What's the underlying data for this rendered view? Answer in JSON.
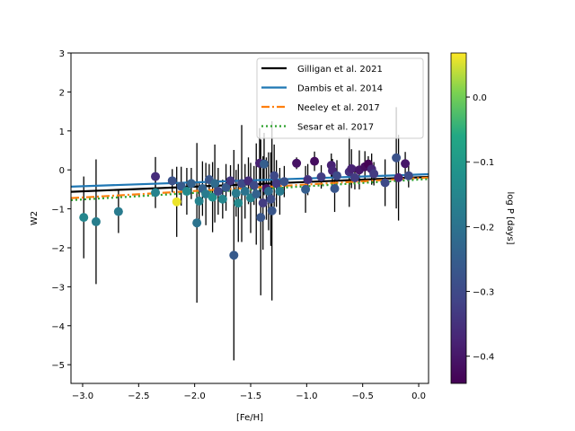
{
  "chart_data": {
    "type": "scatter",
    "xlabel": "[Fe/H]",
    "ylabel": "W2",
    "xlim": [
      -3.104,
      0.088
    ],
    "ylim": [
      -5.48,
      3.0
    ],
    "xticks": [
      -3.0,
      -2.5,
      -2.0,
      -1.5,
      -1.0,
      -0.5,
      0.0
    ],
    "xtick_labels": [
      "−3.0",
      "−2.5",
      "−2.0",
      "−1.5",
      "−1.0",
      "−0.5",
      "0.0"
    ],
    "yticks": [
      3,
      2,
      1,
      0,
      -1,
      -2,
      -3,
      -4,
      -5
    ],
    "ytick_labels": [
      "3",
      "2",
      "1",
      "0",
      "−1",
      "−2",
      "−3",
      "−4",
      "−5"
    ],
    "colorbar": {
      "label": "log P [days]",
      "range": [
        -0.442,
        0.068
      ],
      "ticks": [
        0.0,
        -0.1,
        -0.2,
        -0.3,
        -0.4
      ],
      "tick_labels": [
        "0.0",
        "−0.1",
        "−0.2",
        "−0.3",
        "−0.4"
      ],
      "colormap": "viridis"
    },
    "legend_position": "top-right",
    "lines": [
      {
        "name": "Gilligan et al. 2021",
        "slope": 0.12,
        "intercept": -0.19,
        "color": "#000000",
        "style": "solid"
      },
      {
        "name": "Dambis et al. 2014",
        "slope": 0.1,
        "intercept": -0.12,
        "color": "#1f77b4",
        "style": "solid"
      },
      {
        "name": "Neeley et al. 2017",
        "slope": 0.166,
        "intercept": -0.21,
        "color": "#ff7f0e",
        "style": "dashdot"
      },
      {
        "name": "Sesar et al. 2017",
        "slope": 0.17,
        "intercept": -0.25,
        "color": "#2ca02c",
        "style": "dotted"
      }
    ],
    "points": [
      [
        -2.99,
        -1.22,
        1.05,
        -0.15
      ],
      [
        -2.88,
        -1.33,
        1.6,
        -0.17
      ],
      [
        -2.68,
        -1.07,
        0.55,
        -0.18
      ],
      [
        -2.35,
        -0.17,
        0.5,
        -0.36
      ],
      [
        -2.35,
        -0.58,
        0.4,
        -0.16
      ],
      [
        -2.2,
        -0.28,
        0.3,
        -0.28
      ],
      [
        -2.16,
        -0.82,
        0.9,
        0.06
      ],
      [
        -2.12,
        -0.42,
        0.5,
        -0.26
      ],
      [
        -2.07,
        -0.55,
        0.6,
        -0.14
      ],
      [
        -2.03,
        -0.35,
        0.4,
        -0.24
      ],
      [
        -1.98,
        -1.36,
        2.05,
        -0.2
      ],
      [
        -1.96,
        -0.8,
        0.5,
        -0.16
      ],
      [
        -1.93,
        -0.48,
        0.7,
        -0.24
      ],
      [
        -1.9,
        -0.62,
        0.8,
        -0.18
      ],
      [
        -1.87,
        -0.25,
        0.4,
        -0.27
      ],
      [
        -1.84,
        -0.7,
        0.9,
        -0.13
      ],
      [
        -1.82,
        -0.35,
        1.0,
        -0.22
      ],
      [
        -1.79,
        -0.55,
        0.6,
        -0.3
      ],
      [
        -1.75,
        -0.75,
        0.5,
        -0.15
      ],
      [
        -1.72,
        -0.45,
        0.6,
        -0.26
      ],
      [
        -1.68,
        -0.28,
        0.4,
        -0.34
      ],
      [
        -1.65,
        -2.19,
        2.7,
        -0.26
      ],
      [
        -1.63,
        -0.6,
        0.6,
        -0.18
      ],
      [
        -1.61,
        -0.85,
        1.0,
        -0.14
      ],
      [
        -1.58,
        -0.35,
        1.5,
        -0.3
      ],
      [
        -1.55,
        -0.55,
        0.7,
        -0.2
      ],
      [
        -1.52,
        -0.28,
        0.6,
        -0.36
      ],
      [
        -1.5,
        -0.72,
        0.9,
        -0.16
      ],
      [
        -1.47,
        -0.4,
        0.5,
        -0.3
      ],
      [
        -1.45,
        -0.62,
        1.3,
        -0.24
      ],
      [
        -1.42,
        0.17,
        0.9,
        -0.38
      ],
      [
        -1.41,
        -1.22,
        2.0,
        -0.27
      ],
      [
        -1.39,
        -0.85,
        1.2,
        -0.33
      ],
      [
        -1.38,
        0.15,
        0.8,
        -0.25
      ],
      [
        -1.36,
        -0.48,
        0.8,
        -0.4
      ],
      [
        -1.34,
        -0.55,
        1.0,
        -0.22
      ],
      [
        -1.32,
        -0.75,
        1.2,
        -0.29
      ],
      [
        -1.31,
        -1.05,
        2.3,
        -0.27
      ],
      [
        -1.29,
        -0.15,
        0.8,
        -0.3
      ],
      [
        -1.27,
        -0.35,
        0.6,
        -0.33
      ],
      [
        -1.24,
        -0.55,
        0.6,
        -0.18
      ],
      [
        -1.2,
        -0.3,
        0.4,
        -0.28
      ],
      [
        -1.09,
        0.17,
        0.15,
        -0.41
      ],
      [
        -1.01,
        -0.5,
        0.6,
        -0.25
      ],
      [
        -0.99,
        -0.25,
        0.4,
        -0.35
      ],
      [
        -0.93,
        0.22,
        0.25,
        -0.42
      ],
      [
        -0.87,
        -0.18,
        0.3,
        -0.33
      ],
      [
        -0.78,
        0.12,
        0.3,
        -0.38
      ],
      [
        -0.77,
        -0.02,
        0.3,
        -0.37
      ],
      [
        -0.75,
        -0.48,
        0.6,
        -0.27
      ],
      [
        -0.73,
        -0.15,
        0.4,
        -0.3
      ],
      [
        -0.62,
        -0.05,
        0.9,
        -0.35
      ],
      [
        -0.6,
        0.03,
        0.5,
        -0.38
      ],
      [
        -0.57,
        -0.2,
        0.3,
        -0.33
      ],
      [
        -0.53,
        0.0,
        0.5,
        -0.4
      ],
      [
        -0.48,
        0.08,
        0.4,
        -0.42
      ],
      [
        -0.45,
        0.15,
        0.2,
        -0.44
      ],
      [
        -0.42,
        0.02,
        0.4,
        -0.37
      ],
      [
        -0.4,
        -0.1,
        0.3,
        -0.33
      ],
      [
        -0.3,
        -0.33,
        0.6,
        -0.3
      ],
      [
        -0.2,
        0.31,
        1.3,
        -0.28
      ],
      [
        -0.18,
        -0.2,
        1.1,
        -0.37
      ],
      [
        -0.12,
        0.16,
        0.3,
        -0.4
      ],
      [
        -0.09,
        -0.15,
        0.3,
        -0.3
      ]
    ],
    "point_fields": [
      "feh",
      "w2",
      "w2_err",
      "logP"
    ]
  }
}
